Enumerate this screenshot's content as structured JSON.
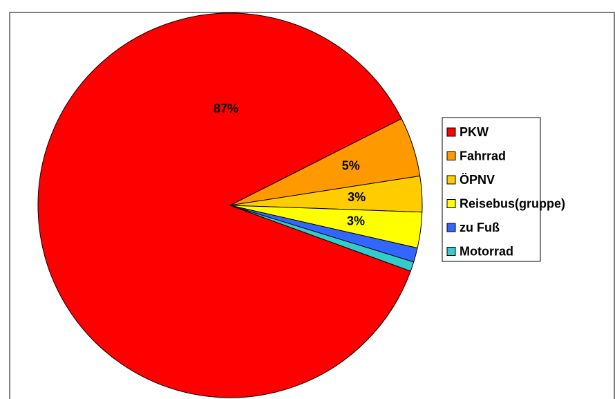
{
  "chart_data": {
    "type": "pie",
    "categories": [
      "PKW",
      "Fahrrad",
      "ÖPNV",
      "Reisebus(gruppe)",
      "zu Fuß",
      "Motorrad"
    ],
    "values": [
      87,
      5,
      3,
      3,
      1.2,
      0.8
    ],
    "value_labels": [
      "87%",
      "5%",
      "3%",
      "3%",
      null,
      null
    ],
    "colors": [
      "#ff0000",
      "#ff9900",
      "#ffcc00",
      "#ffff00",
      "#3366ff",
      "#33cccc"
    ],
    "legend": "right"
  }
}
